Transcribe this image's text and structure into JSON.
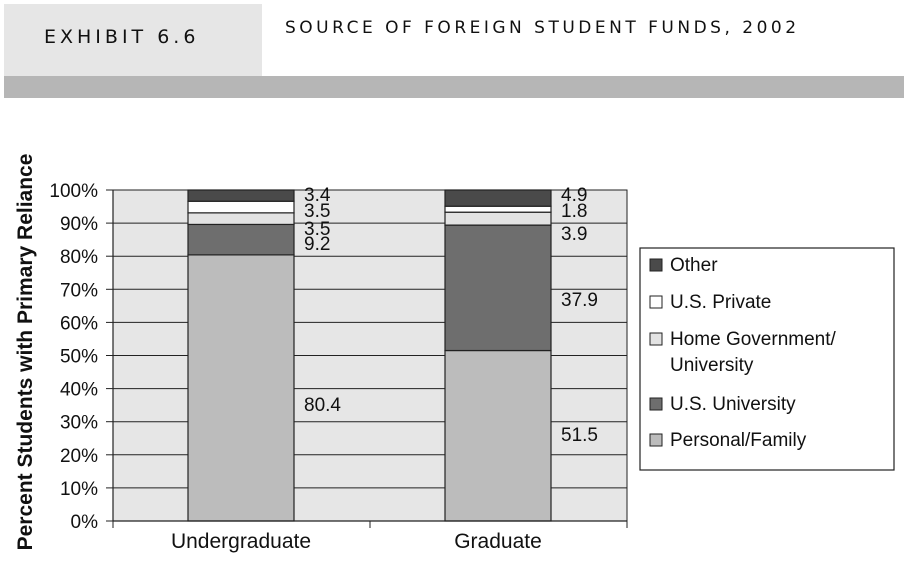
{
  "header": {
    "exhibit": "EXHIBIT 6.6",
    "title": "SOURCE OF FOREIGN STUDENT FUNDS, 2002"
  },
  "chart_data": {
    "type": "bar",
    "stacked": true,
    "title": "",
    "xlabel": "",
    "ylabel": "Percent Students with Primary Reliance",
    "ylim": [
      0,
      100
    ],
    "y_ticks": [
      "0%",
      "10%",
      "20%",
      "30%",
      "40%",
      "50%",
      "60%",
      "70%",
      "80%",
      "90%",
      "100%"
    ],
    "categories": [
      "Undergraduate",
      "Graduate"
    ],
    "grid": true,
    "legend_position": "right",
    "series": [
      {
        "name": "Personal/Family",
        "values": [
          80.4,
          51.5
        ],
        "color": "#bcbcbc"
      },
      {
        "name": "U.S. University",
        "values": [
          9.2,
          37.9
        ],
        "color": "#6e6e6e"
      },
      {
        "name": "Home Government/ University",
        "values": [
          3.5,
          3.9
        ],
        "color": "#e3e3e3"
      },
      {
        "name": "U.S. Private",
        "values": [
          3.5,
          1.8
        ],
        "color": "#ffffff"
      },
      {
        "name": "Other",
        "values": [
          3.4,
          4.9
        ],
        "color": "#4a4a4a"
      }
    ],
    "data_labels": [
      [
        "80.4",
        "9.2",
        "3.5",
        "3.5",
        "3.4"
      ],
      [
        "51.5",
        "37.9",
        "3.9",
        "1.8",
        "4.9"
      ]
    ],
    "legend_order": [
      "Other",
      "U.S. Private",
      "Home Government/ University",
      "U.S. University",
      "Personal/Family"
    ]
  }
}
